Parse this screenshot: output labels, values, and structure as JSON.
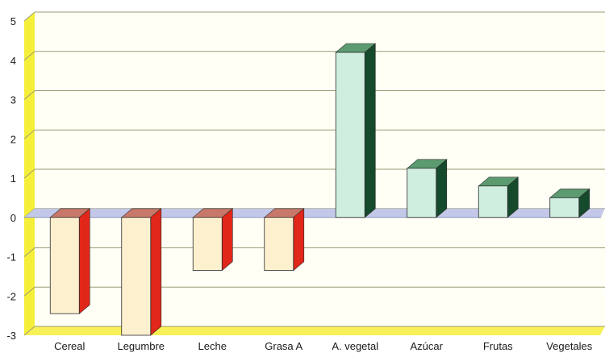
{
  "chart_data": {
    "type": "bar",
    "title": "",
    "xlabel": "",
    "ylabel": "",
    "categories": [
      "Cereal",
      "Legumbre",
      "Leche",
      "Grasa A",
      "A. vegetal",
      "Azúcar",
      "Frutas",
      "Vegetales"
    ],
    "values": [
      -2.45,
      -3.0,
      -1.35,
      -1.35,
      4.2,
      1.25,
      0.8,
      0.5
    ],
    "ylim": [
      -3,
      5
    ],
    "yticks": [
      5,
      4,
      3,
      2,
      1,
      0,
      -1,
      -2,
      -3
    ],
    "grid": true,
    "legend": "none",
    "three_d": true,
    "colors": {
      "negative_front": "#fdf0cf",
      "negative_side": "#e0271a",
      "negative_top": "#c7786a",
      "positive_front": "#cfeee0",
      "positive_side": "#164a2c",
      "positive_top": "#5c9b70",
      "floor": "#c3c8e8",
      "wall": "#fffff6",
      "side_wall": "#f6ef3a",
      "grid": "#9b9b74"
    }
  }
}
